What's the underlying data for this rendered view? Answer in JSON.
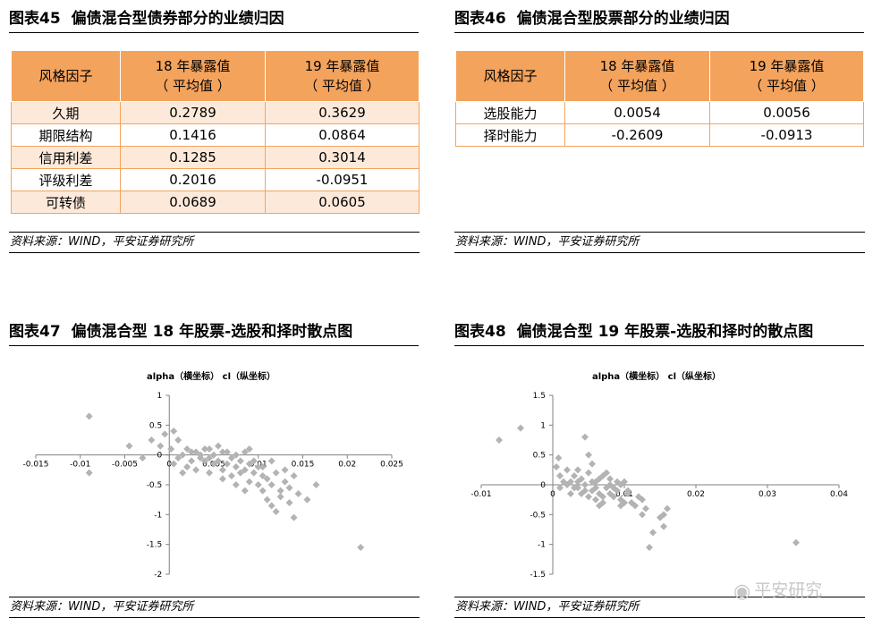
{
  "panels": {
    "p45": {
      "num": "图表45",
      "title": "偏债混合型债券部分的业绩归因",
      "source": "资料来源：WIND，平安证券研究所",
      "table": {
        "h1": "风格因子",
        "h2a": "18 年暴露值",
        "h2b": "（ 平均值 ）",
        "h3a": "19 年暴露值",
        "h3b": "（ 平均值 ）",
        "rows": [
          {
            "name": "久期",
            "v18": "0.2789",
            "v19": "0.3629"
          },
          {
            "name": "期限结构",
            "v18": "0.1416",
            "v19": "0.0864"
          },
          {
            "name": "信用利差",
            "v18": "0.1285",
            "v19": "0.3014"
          },
          {
            "name": "评级利差",
            "v18": "0.2016",
            "v19": "-0.0951"
          },
          {
            "name": "可转债",
            "v18": "0.0689",
            "v19": "0.0605"
          }
        ]
      }
    },
    "p46": {
      "num": "图表46",
      "title": "偏债混合型股票部分的业绩归因",
      "source": "资料来源：WIND，平安证券研究所",
      "table": {
        "h1": "风格因子",
        "h2a": "18 年暴露值",
        "h2b": "（ 平均值 ）",
        "h3a": "19 年暴露值",
        "h3b": "（ 平均值 ）",
        "rows": [
          {
            "name": "选股能力",
            "v18": "0.0054",
            "v19": "0.0056"
          },
          {
            "name": "择时能力",
            "v18": "-0.2609",
            "v19": "-0.0913"
          }
        ]
      }
    },
    "p47": {
      "num": "图表47",
      "title": "偏债混合型 18 年股票-选股和择时散点图",
      "source": "资料来源：WIND，平安证券研究所"
    },
    "p48": {
      "num": "图表48",
      "title": "偏债混合型 19 年股票-选股和择时的散点图",
      "source": "资料来源：WIND，平安证券研究所"
    }
  },
  "watermark": {
    "text": "平安研究",
    "icon": "wechat-icon"
  },
  "chart_data": [
    {
      "type": "scatter",
      "title": "alpha（横坐标） cl（纵坐标）",
      "xlim": [
        -0.015,
        0.025
      ],
      "ylim": [
        -2,
        1
      ],
      "xticks": [
        -0.015,
        -0.01,
        -0.005,
        0,
        0.005,
        0.01,
        0.015,
        0.02,
        0.025
      ],
      "xtick_labels": [
        "-0.015",
        "-0.01",
        "-0.005",
        "0",
        "0.005",
        "0.01",
        "0.015",
        "0.02",
        "0.025"
      ],
      "yticks": [
        1,
        0.5,
        0,
        -0.5,
        -1,
        -1.5,
        -2
      ],
      "ytick_labels": [
        "1",
        "0.5",
        "0",
        "-0.5",
        "-1",
        "-1.5",
        "-2"
      ],
      "grid": false,
      "marker_color": "#b3b3b3",
      "points": [
        [
          -0.009,
          0.65
        ],
        [
          -0.009,
          -0.3
        ],
        [
          -0.0045,
          0.15
        ],
        [
          -0.003,
          -0.05
        ],
        [
          -0.002,
          0.25
        ],
        [
          -0.001,
          0.15
        ],
        [
          -0.0005,
          0.35
        ],
        [
          0.0005,
          0.4
        ],
        [
          0.0002,
          0.1
        ],
        [
          0.001,
          0.25
        ],
        [
          0.0015,
          0.0
        ],
        [
          0.002,
          0.1
        ],
        [
          0.003,
          0.05
        ],
        [
          0.0035,
          -0.05
        ],
        [
          0.004,
          0.1
        ],
        [
          0.0045,
          -0.05
        ],
        [
          0.005,
          0.0
        ],
        [
          0.0055,
          -0.1
        ],
        [
          0.006,
          0.05
        ],
        [
          0.0065,
          -0.15
        ],
        [
          0.007,
          -0.05
        ],
        [
          0.0075,
          -0.2
        ],
        [
          0.008,
          -0.1
        ],
        [
          0.0085,
          -0.25
        ],
        [
          0.009,
          -0.15
        ],
        [
          0.0095,
          -0.3
        ],
        [
          0.01,
          -0.2
        ],
        [
          0.0105,
          -0.35
        ],
        [
          0.011,
          -0.4
        ],
        [
          0.0115,
          -0.5
        ],
        [
          0.012,
          -0.3
        ],
        [
          0.0125,
          -0.6
        ],
        [
          0.013,
          -0.45
        ],
        [
          0.0135,
          -0.55
        ],
        [
          0.014,
          -0.35
        ],
        [
          0.0145,
          -0.65
        ],
        [
          0.0155,
          -0.75
        ],
        [
          0.0165,
          -0.5
        ],
        [
          0.014,
          -1.05
        ],
        [
          0.0215,
          -1.55
        ],
        [
          0.001,
          -0.05
        ],
        [
          0.0025,
          -0.1
        ],
        [
          0.003,
          -0.25
        ],
        [
          0.0035,
          0.0
        ],
        [
          0.004,
          -0.1
        ],
        [
          0.0045,
          -0.3
        ],
        [
          0.005,
          -0.15
        ],
        [
          0.0055,
          0.15
        ],
        [
          0.006,
          -0.25
        ],
        [
          0.0065,
          0.05
        ],
        [
          0.007,
          -0.35
        ],
        [
          0.0075,
          0.0
        ],
        [
          0.008,
          -0.3
        ],
        [
          0.0085,
          0.05
        ],
        [
          0.009,
          -0.45
        ],
        [
          0.0095,
          -0.1
        ],
        [
          0.01,
          -0.5
        ],
        [
          0.0105,
          -0.2
        ],
        [
          0.011,
          -0.75
        ],
        [
          0.0115,
          -0.85
        ],
        [
          0.012,
          -0.95
        ],
        [
          0.0125,
          -0.7
        ],
        [
          0.013,
          -0.25
        ],
        [
          0.0135,
          -0.8
        ],
        [
          0.002,
          -0.2
        ],
        [
          0.0015,
          -0.3
        ],
        [
          0.0005,
          -0.15
        ],
        [
          0.0025,
          0.05
        ],
        [
          0.0045,
          0.1
        ],
        [
          0.006,
          -0.4
        ],
        [
          0.0075,
          -0.5
        ],
        [
          0.0085,
          -0.6
        ],
        [
          0.0105,
          -0.6
        ],
        [
          0.0115,
          -0.1
        ],
        [
          0.009,
          0.1
        ]
      ]
    },
    {
      "type": "scatter",
      "title": "alpha（横坐标） cl（纵坐标）",
      "xlim": [
        -0.01,
        0.04
      ],
      "ylim": [
        -1.5,
        1.5
      ],
      "xticks": [
        -0.01,
        0,
        0.01,
        0.02,
        0.03,
        0.04
      ],
      "xtick_labels": [
        "-0.01",
        "0",
        "0.01",
        "0.02",
        "0.03",
        "0.04"
      ],
      "yticks": [
        1.5,
        1,
        0.5,
        0,
        -0.5,
        -1,
        -1.5
      ],
      "ytick_labels": [
        "1.5",
        "1",
        "0.5",
        "0",
        "-0.5",
        "-1",
        "-1.5"
      ],
      "grid": false,
      "marker_color": "#b3b3b3",
      "points": [
        [
          -0.0075,
          0.75
        ],
        [
          -0.0045,
          0.95
        ],
        [
          0.0008,
          0.45
        ],
        [
          0.0005,
          0.3
        ],
        [
          0.001,
          0.15
        ],
        [
          0.002,
          0.25
        ],
        [
          0.0025,
          0.05
        ],
        [
          0.003,
          0.15
        ],
        [
          0.0035,
          -0.05
        ],
        [
          0.004,
          0.1
        ],
        [
          0.0045,
          0.0
        ],
        [
          0.005,
          0.2
        ],
        [
          0.0055,
          -0.1
        ],
        [
          0.006,
          0.05
        ],
        [
          0.0065,
          -0.15
        ],
        [
          0.007,
          0.15
        ],
        [
          0.0075,
          -0.05
        ],
        [
          0.008,
          0.0
        ],
        [
          0.0085,
          -0.2
        ],
        [
          0.009,
          -0.1
        ],
        [
          0.0095,
          -0.25
        ],
        [
          0.01,
          0.05
        ],
        [
          0.0105,
          -0.1
        ],
        [
          0.011,
          -0.3
        ],
        [
          0.012,
          -0.2
        ],
        [
          0.0125,
          -0.5
        ],
        [
          0.013,
          -0.4
        ],
        [
          0.014,
          -0.8
        ],
        [
          0.015,
          -0.55
        ],
        [
          0.016,
          -0.4
        ],
        [
          0.0155,
          -0.7
        ],
        [
          0.0135,
          -1.05
        ],
        [
          0.034,
          -0.97
        ],
        [
          0.0045,
          0.8
        ],
        [
          0.005,
          0.5
        ],
        [
          0.0055,
          0.35
        ],
        [
          0.0035,
          0.25
        ],
        [
          0.006,
          -0.25
        ],
        [
          0.007,
          -0.3
        ],
        [
          0.0075,
          0.2
        ],
        [
          0.008,
          -0.15
        ],
        [
          0.003,
          -0.05
        ],
        [
          0.002,
          0.0
        ],
        [
          0.004,
          -0.15
        ],
        [
          0.0065,
          0.1
        ],
        [
          0.009,
          0.05
        ],
        [
          0.0095,
          -0.35
        ],
        [
          0.0085,
          -0.05
        ],
        [
          0.0105,
          -0.15
        ],
        [
          0.0115,
          -0.35
        ],
        [
          0.0125,
          -0.25
        ],
        [
          0.005,
          -0.2
        ],
        [
          0.0045,
          -0.1
        ],
        [
          0.0025,
          -0.15
        ],
        [
          0.001,
          -0.05
        ],
        [
          0.0015,
          0.05
        ],
        [
          0.006,
          -0.05
        ],
        [
          0.007,
          -0.2
        ],
        [
          0.0035,
          0.05
        ],
        [
          0.0055,
          0.05
        ],
        [
          0.0065,
          -0.35
        ],
        [
          0.008,
          0.1
        ],
        [
          0.01,
          -0.3
        ],
        [
          0.0155,
          -0.5
        ],
        [
          0.0095,
          0.0
        ]
      ]
    }
  ]
}
